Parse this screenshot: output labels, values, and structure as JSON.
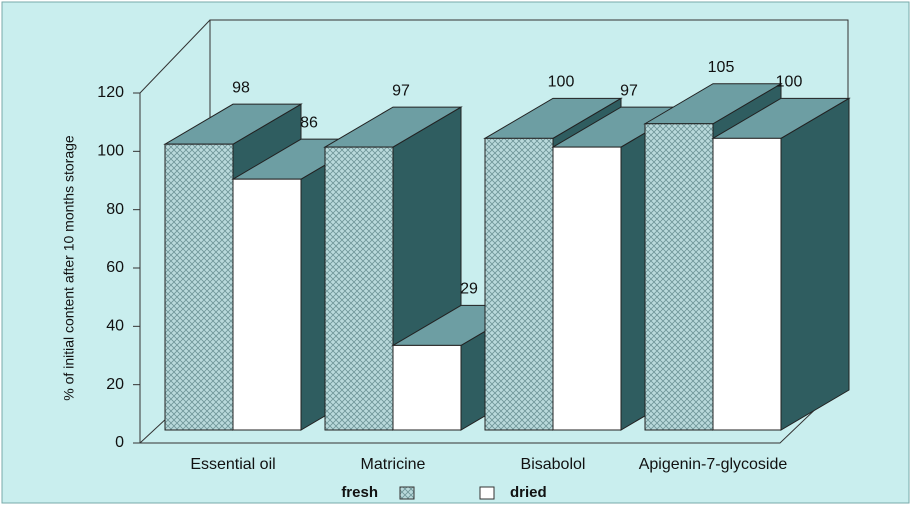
{
  "chart_data": {
    "type": "bar3d",
    "y_label": "% of initial content after 10 months storage",
    "categories": [
      "Essential oil",
      "Matricine",
      "Bisabolol",
      "Apigenin-7-glycoside"
    ],
    "series": [
      {
        "name": "fresh",
        "color": "#9fc5c8",
        "values": [
          98,
          97,
          100,
          105
        ]
      },
      {
        "name": "dried",
        "color": "#ffffff",
        "values": [
          86,
          29,
          97,
          100
        ]
      }
    ],
    "ylim": [
      0,
      120
    ],
    "yticks": [
      0,
      20,
      40,
      60,
      80,
      100,
      120
    ]
  }
}
